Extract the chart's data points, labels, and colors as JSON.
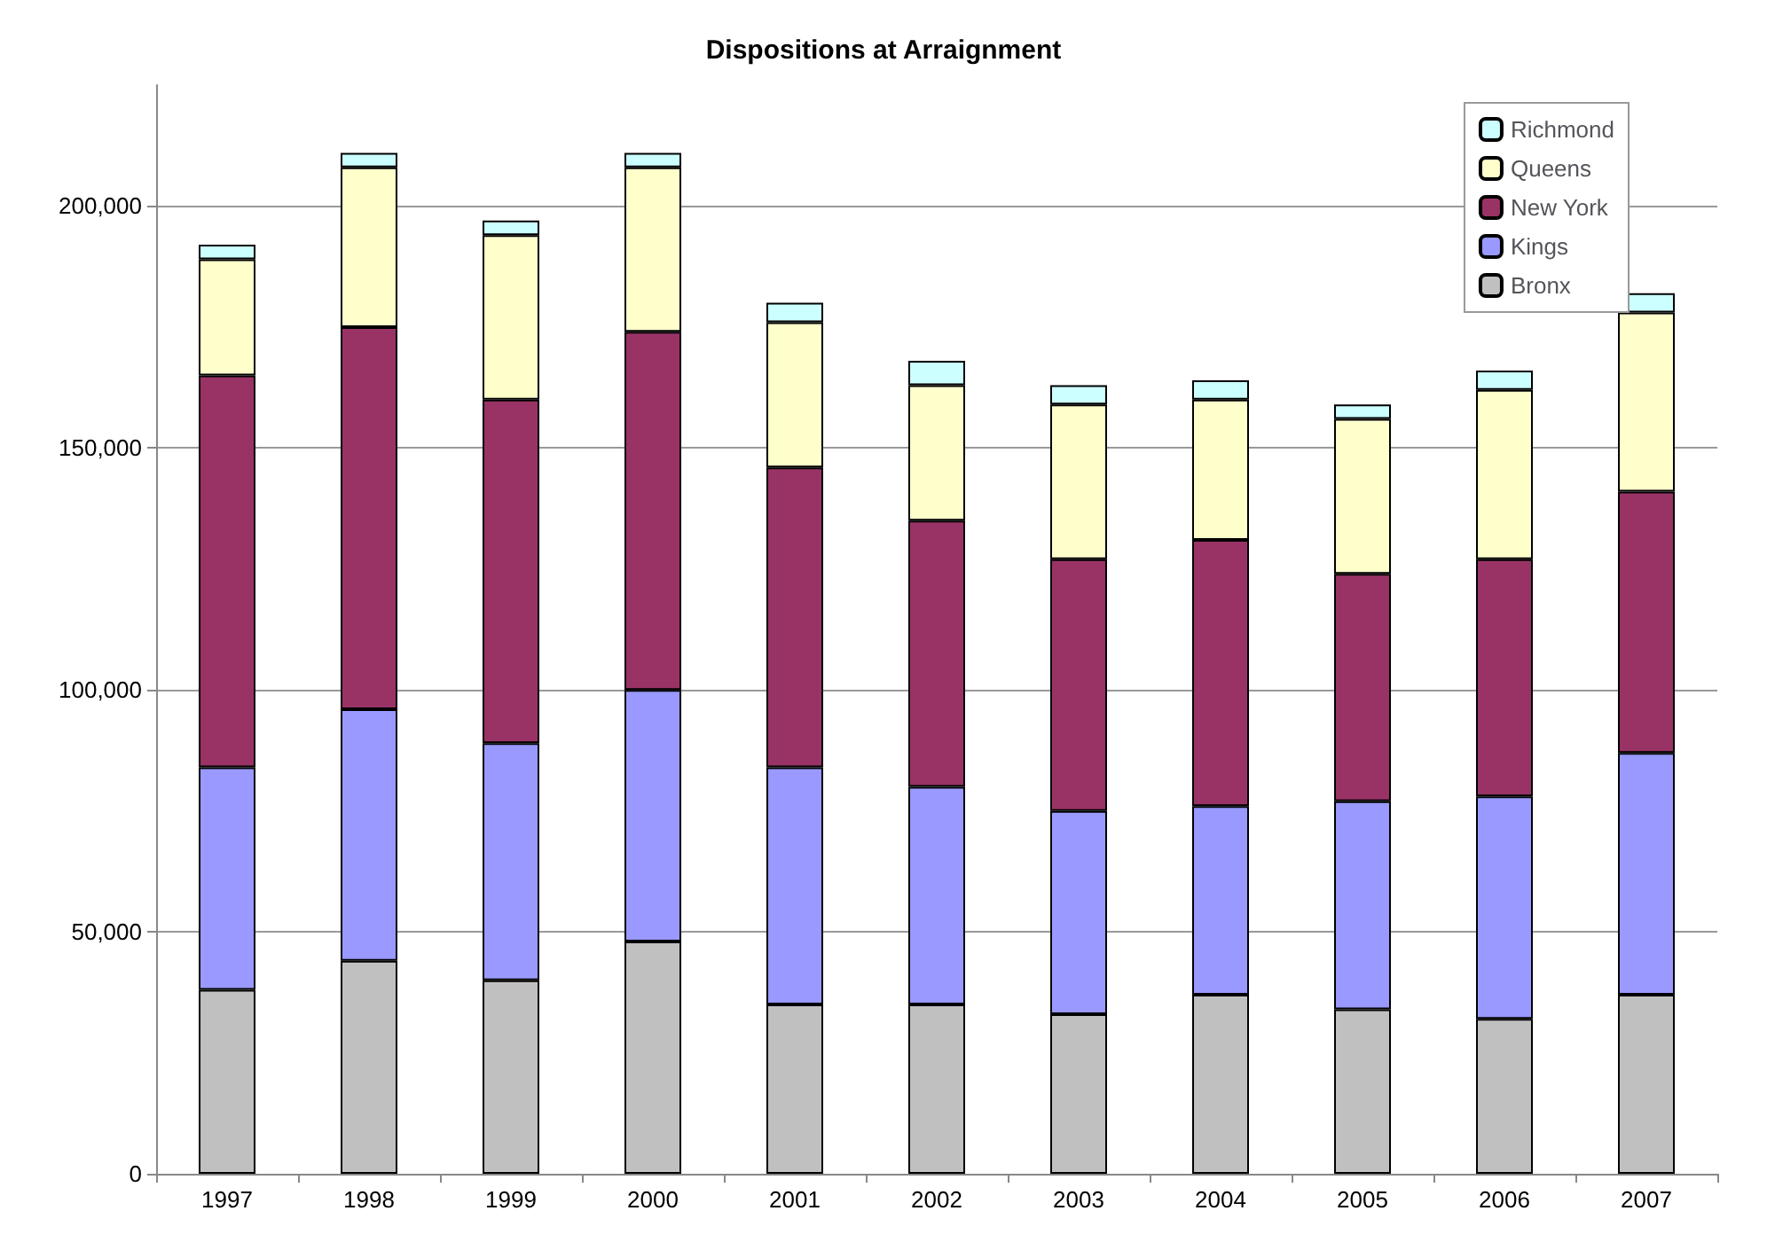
{
  "chart_data": {
    "type": "bar",
    "title": "Dispositions at Arraignment",
    "stacked": true,
    "categories": [
      "1997",
      "1998",
      "1999",
      "2000",
      "2001",
      "2002",
      "2003",
      "2004",
      "2005",
      "2006",
      "2007"
    ],
    "series": [
      {
        "name": "Bronx",
        "color": "#c0c0c0",
        "values": [
          38000,
          44000,
          40000,
          48000,
          35000,
          35000,
          33000,
          37000,
          34000,
          32000,
          37000
        ]
      },
      {
        "name": "Kings",
        "color": "#9999ff",
        "values": [
          46000,
          52000,
          49000,
          52000,
          49000,
          45000,
          42000,
          39000,
          43000,
          46000,
          50000
        ]
      },
      {
        "name": "New York",
        "color": "#993366",
        "values": [
          81000,
          79000,
          71000,
          74000,
          62000,
          55000,
          52000,
          55000,
          47000,
          49000,
          54000
        ]
      },
      {
        "name": "Queens",
        "color": "#ffffcc",
        "values": [
          24000,
          33000,
          34000,
          34000,
          30000,
          28000,
          32000,
          29000,
          32000,
          35000,
          37000
        ]
      },
      {
        "name": "Richmond",
        "color": "#ccffff",
        "values": [
          3000,
          3000,
          3000,
          3000,
          4000,
          5000,
          4000,
          4000,
          3000,
          4000,
          4000
        ]
      }
    ],
    "ylim": [
      0,
      225000
    ],
    "yticks": [
      {
        "value": 0,
        "label": "0"
      },
      {
        "value": 50000,
        "label": "50,000"
      },
      {
        "value": 100000,
        "label": "100,000"
      },
      {
        "value": 150000,
        "label": "150,000"
      },
      {
        "value": 200000,
        "label": "200,000"
      }
    ],
    "grid": "y",
    "legend": "top right"
  }
}
